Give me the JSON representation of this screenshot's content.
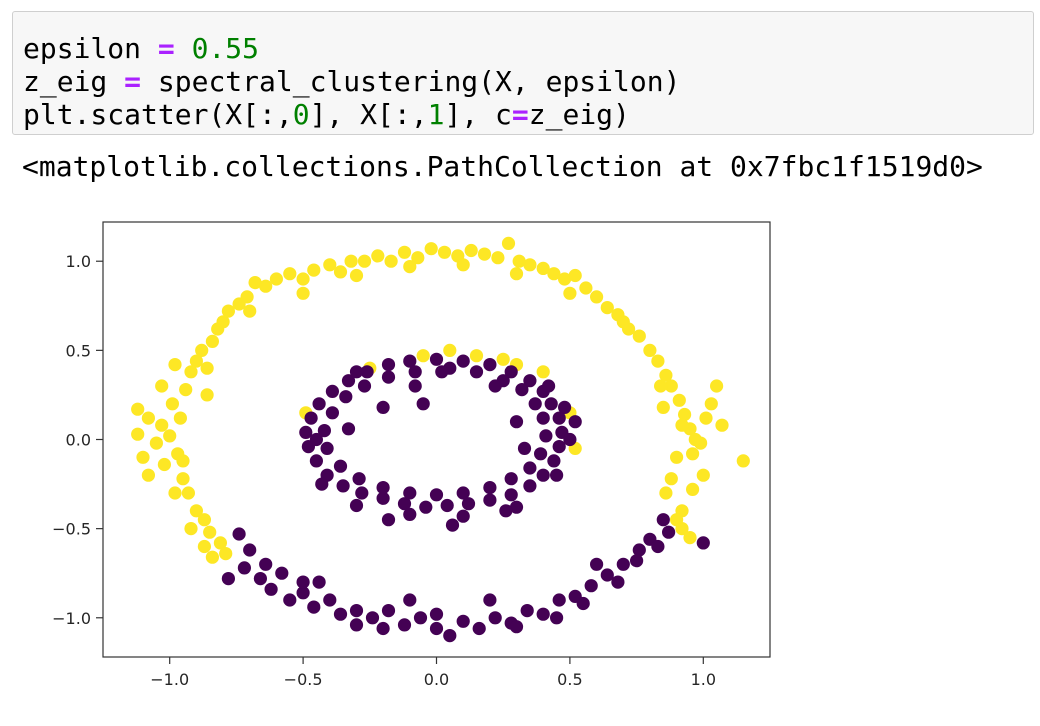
{
  "code_cell": {
    "lines": [
      [
        {
          "text": "epsilon ",
          "kind": "plain"
        },
        {
          "text": "=",
          "kind": "op"
        },
        {
          "text": " ",
          "kind": "plain"
        },
        {
          "text": "0.55",
          "kind": "num"
        }
      ],
      [
        {
          "text": "z_eig ",
          "kind": "plain"
        },
        {
          "text": "=",
          "kind": "op"
        },
        {
          "text": " spectral_clustering(X, epsilon)",
          "kind": "plain"
        }
      ],
      [
        {
          "text": "plt.scatter(X[:,",
          "kind": "plain"
        },
        {
          "text": "0",
          "kind": "num"
        },
        {
          "text": "], X[:,",
          "kind": "plain"
        },
        {
          "text": "1",
          "kind": "num"
        },
        {
          "text": "], c",
          "kind": "plain"
        },
        {
          "text": "=",
          "kind": "op"
        },
        {
          "text": "z_eig)",
          "kind": "plain"
        }
      ]
    ],
    "colors": {
      "background": "#f7f7f7",
      "border": "#cfcfcf",
      "operator": "#aa22ff",
      "number": "#008000"
    }
  },
  "output": {
    "text": "<matplotlib.collections.PathCollection at 0x7fbc1f1519d0>"
  },
  "chart_data": {
    "type": "scatter",
    "title": "",
    "xlabel": "",
    "ylabel": "",
    "xlim": [
      -1.25,
      1.25
    ],
    "ylim": [
      -1.22,
      1.22
    ],
    "xticks": [
      -1.0,
      -0.5,
      0.0,
      0.5,
      1.0
    ],
    "xtick_labels": [
      "−1.0",
      "−0.5",
      "0.0",
      "0.5",
      "1.0"
    ],
    "yticks": [
      1.0,
      0.5,
      0.0,
      -0.5,
      -1.0
    ],
    "ytick_labels": [
      "1.0",
      "0.5",
      "0.0",
      "−0.5",
      "−1.0"
    ],
    "grid": false,
    "legend": "none",
    "class_colors": {
      "0": "#440154",
      "1": "#fde725"
    },
    "clusters": [
      {
        "label": 1,
        "description": "outer ring, upper-left / top / right arc",
        "points": [
          [
            -1.1,
            -0.1
          ],
          [
            -1.12,
            0.03
          ],
          [
            -1.08,
            0.12
          ],
          [
            -1.05,
            -0.02
          ],
          [
            -1.03,
            0.08
          ],
          [
            -1.02,
            -0.14
          ],
          [
            -0.99,
            0.2
          ],
          [
            -1.0,
            0.02
          ],
          [
            -0.97,
            -0.08
          ],
          [
            -0.96,
            0.12
          ],
          [
            -0.94,
            0.28
          ],
          [
            -0.95,
            -0.22
          ],
          [
            -0.92,
            0.38
          ],
          [
            -0.9,
            0.44
          ],
          [
            -0.93,
            -0.3
          ],
          [
            -0.88,
            0.5
          ],
          [
            -0.9,
            -0.4
          ],
          [
            -0.86,
            0.25
          ],
          [
            -0.87,
            -0.45
          ],
          [
            -0.84,
            0.55
          ],
          [
            -0.82,
            0.62
          ],
          [
            -0.85,
            -0.52
          ],
          [
            -0.8,
            0.66
          ],
          [
            -0.81,
            -0.58
          ],
          [
            -0.78,
            0.72
          ],
          [
            -0.79,
            -0.64
          ],
          [
            -1.03,
            0.3
          ],
          [
            -1.12,
            0.17
          ],
          [
            -1.08,
            -0.2
          ],
          [
            -0.98,
            0.42
          ],
          [
            -0.74,
            0.76
          ],
          [
            -0.71,
            0.8
          ],
          [
            -0.68,
            0.88
          ],
          [
            -0.64,
            0.86
          ],
          [
            -0.6,
            0.9
          ],
          [
            -0.55,
            0.93
          ],
          [
            -0.5,
            0.9
          ],
          [
            -0.46,
            0.95
          ],
          [
            -0.4,
            0.98
          ],
          [
            -0.36,
            0.94
          ],
          [
            -0.32,
            1.0
          ],
          [
            -0.27,
            1.0
          ],
          [
            -0.22,
            1.03
          ],
          [
            -0.17,
            1.0
          ],
          [
            -0.12,
            1.05
          ],
          [
            -0.07,
            1.02
          ],
          [
            -0.02,
            1.07
          ],
          [
            0.03,
            1.05
          ],
          [
            0.08,
            1.03
          ],
          [
            0.13,
            1.06
          ],
          [
            0.18,
            1.04
          ],
          [
            0.23,
            1.02
          ],
          [
            0.27,
            1.1
          ],
          [
            0.31,
            1.0
          ],
          [
            0.35,
            0.98
          ],
          [
            0.4,
            0.96
          ],
          [
            0.44,
            0.93
          ],
          [
            0.48,
            0.9
          ],
          [
            0.52,
            0.92
          ],
          [
            0.56,
            0.85
          ],
          [
            0.6,
            0.8
          ],
          [
            0.64,
            0.74
          ],
          [
            0.68,
            0.7
          ],
          [
            0.72,
            0.62
          ],
          [
            0.76,
            0.58
          ],
          [
            0.8,
            0.5
          ],
          [
            0.83,
            0.44
          ],
          [
            0.86,
            0.36
          ],
          [
            0.88,
            0.3
          ],
          [
            0.91,
            0.22
          ],
          [
            0.93,
            0.14
          ],
          [
            0.95,
            0.06
          ],
          [
            0.97,
            0.0
          ],
          [
            0.96,
            -0.08
          ],
          [
            0.99,
            -0.02
          ],
          [
            1.01,
            0.12
          ],
          [
            1.03,
            0.2
          ],
          [
            1.05,
            0.3
          ],
          [
            1.15,
            -0.12
          ],
          [
            0.92,
            0.08
          ],
          [
            0.9,
            -0.1
          ],
          [
            0.88,
            -0.22
          ],
          [
            0.86,
            -0.3
          ],
          [
            0.92,
            -0.4
          ],
          [
            0.9,
            -0.45
          ],
          [
            0.96,
            -0.28
          ],
          [
            1.0,
            -0.2
          ],
          [
            1.07,
            0.08
          ],
          [
            0.85,
            0.18
          ],
          [
            0.84,
            0.3
          ],
          [
            -0.5,
            0.82
          ],
          [
            -0.3,
            0.92
          ],
          [
            -0.1,
            0.97
          ],
          [
            0.1,
            0.98
          ],
          [
            0.3,
            0.93
          ],
          [
            0.5,
            0.82
          ],
          [
            0.7,
            0.66
          ],
          [
            -0.7,
            0.72
          ],
          [
            -0.86,
            0.4
          ],
          [
            -0.95,
            -0.12
          ],
          [
            -0.98,
            -0.3
          ],
          [
            -0.92,
            -0.5
          ],
          [
            -0.87,
            -0.6
          ],
          [
            -0.84,
            -0.66
          ],
          [
            0.92,
            -0.5
          ],
          [
            0.95,
            -0.55
          ],
          [
            -0.49,
            0.15
          ],
          [
            0.5,
            0.15
          ],
          [
            0.52,
            -0.05
          ],
          [
            -0.25,
            0.4
          ],
          [
            -0.05,
            0.47
          ],
          [
            0.05,
            0.5
          ],
          [
            0.15,
            0.47
          ],
          [
            0.3,
            0.42
          ],
          [
            0.4,
            0.38
          ],
          [
            0.25,
            0.45
          ]
        ]
      },
      {
        "label": 0,
        "description": "inner ring plus lower arc of outer ring",
        "points": [
          [
            0.0,
            0.45
          ],
          [
            0.1,
            0.44
          ],
          [
            0.2,
            0.42
          ],
          [
            0.28,
            0.38
          ],
          [
            0.35,
            0.33
          ],
          [
            0.4,
            0.27
          ],
          [
            0.43,
            0.2
          ],
          [
            0.46,
            0.12
          ],
          [
            0.47,
            0.04
          ],
          [
            0.46,
            -0.04
          ],
          [
            0.44,
            -0.12
          ],
          [
            0.4,
            -0.2
          ],
          [
            0.35,
            -0.26
          ],
          [
            0.28,
            -0.31
          ],
          [
            0.2,
            -0.34
          ],
          [
            0.12,
            -0.36
          ],
          [
            0.04,
            -0.37
          ],
          [
            -0.04,
            -0.38
          ],
          [
            -0.12,
            -0.36
          ],
          [
            -0.2,
            -0.33
          ],
          [
            -0.28,
            -0.3
          ],
          [
            -0.35,
            -0.26
          ],
          [
            -0.41,
            -0.2
          ],
          [
            -0.45,
            -0.12
          ],
          [
            -0.48,
            -0.04
          ],
          [
            -0.49,
            0.04
          ],
          [
            -0.47,
            0.12
          ],
          [
            -0.44,
            0.2
          ],
          [
            -0.39,
            0.27
          ],
          [
            -0.33,
            0.33
          ],
          [
            -0.26,
            0.38
          ],
          [
            -0.18,
            0.42
          ],
          [
            -0.1,
            0.44
          ],
          [
            0.05,
            0.4
          ],
          [
            0.15,
            0.38
          ],
          [
            0.25,
            0.33
          ],
          [
            0.32,
            0.28
          ],
          [
            0.37,
            0.2
          ],
          [
            0.4,
            0.12
          ],
          [
            0.41,
            0.02
          ],
          [
            0.39,
            -0.08
          ],
          [
            0.35,
            -0.16
          ],
          [
            0.28,
            -0.22
          ],
          [
            0.2,
            -0.27
          ],
          [
            0.1,
            -0.3
          ],
          [
            0.0,
            -0.31
          ],
          [
            -0.1,
            -0.3
          ],
          [
            -0.2,
            -0.27
          ],
          [
            -0.29,
            -0.22
          ],
          [
            -0.36,
            -0.15
          ],
          [
            -0.41,
            -0.05
          ],
          [
            -0.42,
            0.05
          ],
          [
            -0.39,
            0.15
          ],
          [
            -0.34,
            0.24
          ],
          [
            -0.27,
            0.3
          ],
          [
            -0.18,
            0.35
          ],
          [
            -0.08,
            0.38
          ],
          [
            0.02,
            0.38
          ],
          [
            -0.45,
            0.0
          ],
          [
            0.5,
            0.0
          ],
          [
            0.48,
            0.18
          ],
          [
            -0.3,
            0.38
          ],
          [
            -0.1,
            -0.42
          ],
          [
            0.1,
            -0.43
          ],
          [
            0.3,
            -0.38
          ],
          [
            -0.3,
            -0.37
          ],
          [
            0.52,
            0.1
          ],
          [
            -0.05,
            0.2
          ],
          [
            -0.08,
            0.3
          ],
          [
            0.22,
            0.3
          ],
          [
            -0.33,
            0.06
          ],
          [
            0.33,
            -0.05
          ],
          [
            0.3,
            0.1
          ],
          [
            -0.2,
            0.18
          ],
          [
            0.42,
            0.3
          ],
          [
            0.45,
            -0.2
          ],
          [
            -0.43,
            -0.25
          ],
          [
            0.26,
            -0.4
          ],
          [
            -0.18,
            -0.45
          ],
          [
            0.06,
            -0.48
          ],
          [
            -0.74,
            -0.53
          ],
          [
            -0.7,
            -0.62
          ],
          [
            -0.72,
            -0.72
          ],
          [
            -0.66,
            -0.78
          ],
          [
            -0.62,
            -0.84
          ],
          [
            -0.58,
            -0.75
          ],
          [
            -0.55,
            -0.9
          ],
          [
            -0.5,
            -0.86
          ],
          [
            -0.46,
            -0.94
          ],
          [
            -0.4,
            -0.9
          ],
          [
            -0.36,
            -0.98
          ],
          [
            -0.3,
            -0.96
          ],
          [
            -0.24,
            -1.0
          ],
          [
            -0.18,
            -0.96
          ],
          [
            -0.12,
            -1.04
          ],
          [
            -0.06,
            -1.0
          ],
          [
            0.0,
            -1.06
          ],
          [
            0.05,
            -1.1
          ],
          [
            0.1,
            -1.02
          ],
          [
            0.16,
            -1.06
          ],
          [
            0.22,
            -1.0
          ],
          [
            0.28,
            -1.03
          ],
          [
            0.34,
            -0.96
          ],
          [
            0.4,
            -0.98
          ],
          [
            0.46,
            -0.9
          ],
          [
            0.52,
            -0.88
          ],
          [
            0.58,
            -0.82
          ],
          [
            0.64,
            -0.76
          ],
          [
            0.7,
            -0.7
          ],
          [
            0.76,
            -0.62
          ],
          [
            0.8,
            -0.56
          ],
          [
            0.85,
            -0.45
          ],
          [
            0.87,
            -0.52
          ],
          [
            0.83,
            -0.6
          ],
          [
            0.75,
            -0.68
          ],
          [
            1.0,
            -0.58
          ],
          [
            0.68,
            -0.8
          ],
          [
            0.55,
            -0.92
          ],
          [
            0.3,
            -1.05
          ],
          [
            0.0,
            -0.98
          ],
          [
            -0.3,
            -1.04
          ],
          [
            -0.5,
            -0.8
          ],
          [
            -0.64,
            -0.7
          ],
          [
            -0.78,
            -0.78
          ],
          [
            -0.44,
            -0.8
          ],
          [
            0.2,
            -0.9
          ],
          [
            -0.1,
            -0.9
          ],
          [
            0.45,
            -1.0
          ],
          [
            0.6,
            -0.7
          ],
          [
            -0.2,
            -1.06
          ]
        ]
      }
    ]
  }
}
